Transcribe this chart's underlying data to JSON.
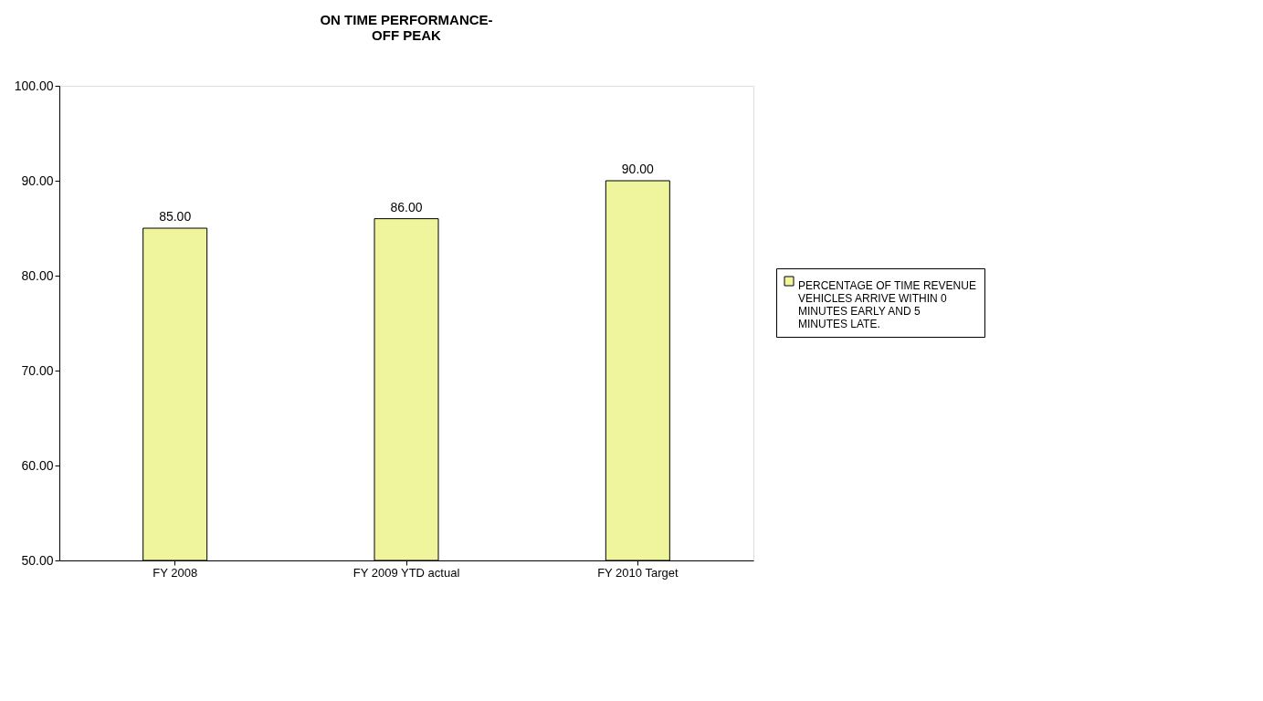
{
  "chart_data": {
    "type": "bar",
    "title": [
      "ON TIME PERFORMANCE-",
      "OFF PEAK"
    ],
    "categories": [
      "FY 2008",
      "FY 2009 YTD actual",
      "FY 2010 Target"
    ],
    "series": [
      {
        "name": "PERCENTAGE OF TIME REVENUE VEHICLES ARRIVE WITHIN 0 MINUTES EARLY AND 5 MINUTES LATE.",
        "color": "#eef59c",
        "values": [
          85,
          86,
          90
        ],
        "value_labels": [
          "85.00",
          "86.00",
          "90.00"
        ]
      }
    ],
    "ylim": [
      50,
      100
    ],
    "yticks": [
      {
        "value": 50,
        "label": "50.00"
      },
      {
        "value": 60,
        "label": "60.00"
      },
      {
        "value": 70,
        "label": "70.00"
      },
      {
        "value": 80,
        "label": "80.00"
      },
      {
        "value": 90,
        "label": "90.00"
      },
      {
        "value": 100,
        "label": "100.00"
      }
    ],
    "grid": false,
    "legend": "right"
  }
}
